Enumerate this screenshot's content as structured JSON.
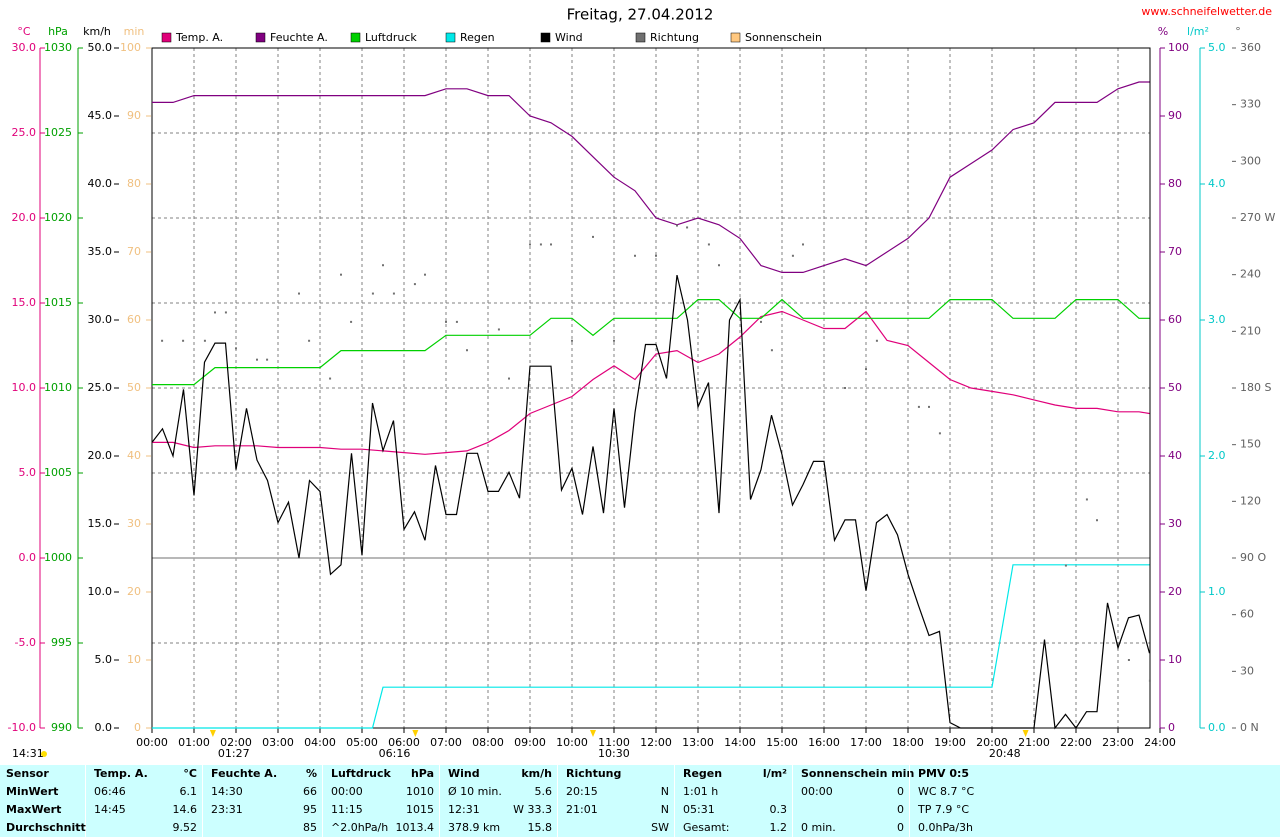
{
  "chart_data": {
    "type": "line",
    "title": "Freitag, 27.04.2012",
    "source": "www.schneifelwetter.de",
    "current_time": "14:31",
    "grid": true,
    "xlim": [
      0,
      24
    ],
    "xticks": [
      {
        "value": 0,
        "label": "00:00"
      },
      {
        "value": 1,
        "label": "01:00"
      },
      {
        "value": 2,
        "label": "02:00"
      },
      {
        "value": 3,
        "label": "03:00"
      },
      {
        "value": 4,
        "label": "04:00"
      },
      {
        "value": 5,
        "label": "05:00"
      },
      {
        "value": 6,
        "label": "06:00"
      },
      {
        "value": 7,
        "label": "07:00"
      },
      {
        "value": 8,
        "label": "08:00"
      },
      {
        "value": 9,
        "label": "09:00"
      },
      {
        "value": 10,
        "label": "10:00"
      },
      {
        "value": 11,
        "label": "11:00"
      },
      {
        "value": 12,
        "label": "12:00"
      },
      {
        "value": 13,
        "label": "13:00"
      },
      {
        "value": 14,
        "label": "14:00"
      },
      {
        "value": 15,
        "label": "15:00"
      },
      {
        "value": 16,
        "label": "16:00"
      },
      {
        "value": 17,
        "label": "17:00"
      },
      {
        "value": 18,
        "label": "18:00"
      },
      {
        "value": 19,
        "label": "19:00"
      },
      {
        "value": 20,
        "label": "20:00"
      },
      {
        "value": 21,
        "label": "21:00"
      },
      {
        "value": 22,
        "label": "22:00"
      },
      {
        "value": 23,
        "label": "23:00"
      },
      {
        "value": 24,
        "label": "24:00"
      }
    ],
    "markers": [
      {
        "time": "01:27",
        "x": 1.45
      },
      {
        "time": "06:16",
        "x": 6.27
      },
      {
        "time": "10:30",
        "x": 10.5
      },
      {
        "time": "20:48",
        "x": 20.8
      }
    ],
    "axes": [
      {
        "unit": "°C",
        "color": "#e0007a",
        "lim": [
          -10,
          30
        ],
        "ticks": [
          {
            "value": -10,
            "label": "-10.0"
          },
          {
            "value": -5,
            "label": "-5.0"
          },
          {
            "value": 0,
            "label": "0.0"
          },
          {
            "value": 5,
            "label": "5.0"
          },
          {
            "value": 10,
            "label": "10.0"
          },
          {
            "value": 15,
            "label": "15.0"
          },
          {
            "value": 20,
            "label": "20.0"
          },
          {
            "value": 25,
            "label": "25.0"
          },
          {
            "value": 30,
            "label": "30.0"
          }
        ]
      },
      {
        "unit": "hPa",
        "color": "#00a000",
        "lim": [
          990,
          1030
        ],
        "ticks": [
          990,
          995,
          1000,
          1005,
          1010,
          1015,
          1020,
          1025,
          1030
        ]
      },
      {
        "unit": "km/h",
        "color": "#000000",
        "lim": [
          0,
          50
        ],
        "ticks": [
          {
            "value": 0,
            "label": "0.0"
          },
          {
            "value": 5,
            "label": "5.0"
          },
          {
            "value": 10,
            "label": "10.0"
          },
          {
            "value": 15,
            "label": "15.0"
          },
          {
            "value": 20,
            "label": "20.0"
          },
          {
            "value": 25,
            "label": "25.0"
          },
          {
            "value": 30,
            "label": "30.0"
          },
          {
            "value": 35,
            "label": "35.0"
          },
          {
            "value": 40,
            "label": "40.0"
          },
          {
            "value": 45,
            "label": "45.0"
          },
          {
            "value": 50,
            "label": "50.0"
          }
        ]
      },
      {
        "unit": "min",
        "color": "#f0c080",
        "lim": [
          0,
          100
        ],
        "ticks": [
          0,
          10,
          20,
          30,
          40,
          50,
          60,
          70,
          80,
          90,
          100
        ]
      },
      {
        "unit": "%",
        "color": "#800080",
        "lim": [
          0,
          100
        ],
        "ticks": [
          0,
          10,
          20,
          30,
          40,
          50,
          60,
          70,
          80,
          90,
          100
        ]
      },
      {
        "unit": "l/m²",
        "color": "#00c8c8",
        "lim": [
          0,
          5
        ],
        "ticks": [
          {
            "value": 0,
            "label": "0.0"
          },
          {
            "value": 1,
            "label": "1.0"
          },
          {
            "value": 2,
            "label": "2.0"
          },
          {
            "value": 3,
            "label": "3.0"
          },
          {
            "value": 4,
            "label": "4.0"
          },
          {
            "value": 5,
            "label": "5.0"
          }
        ]
      },
      {
        "unit": "°",
        "color": "#606060",
        "lim": [
          0,
          360
        ],
        "ticks": [
          {
            "value": 0,
            "label": "0 N"
          },
          30,
          60,
          {
            "value": 90,
            "label": "90 O"
          },
          120,
          150,
          {
            "value": 180,
            "label": "180 S"
          },
          210,
          240,
          {
            "value": 270,
            "label": "270 W"
          },
          300,
          330,
          360
        ]
      }
    ],
    "series": [
      {
        "name": "Temp. A.",
        "color": "#e0007a",
        "axis": 0,
        "type": "line",
        "x": [
          0,
          0.5,
          1,
          1.5,
          2,
          2.5,
          3,
          3.5,
          4,
          4.5,
          5,
          5.5,
          6,
          6.5,
          7,
          7.5,
          8,
          8.5,
          9,
          9.5,
          10,
          10.5,
          11,
          11.5,
          12,
          12.5,
          13,
          13.5,
          14,
          14.5,
          15,
          15.5,
          16,
          16.5,
          17,
          17.5,
          18,
          18.5,
          19,
          19.5,
          20,
          20.5,
          21,
          21.5,
          22,
          22.5,
          23,
          23.5,
          23.75
        ],
        "values": [
          6.8,
          6.8,
          6.5,
          6.6,
          6.6,
          6.6,
          6.5,
          6.5,
          6.5,
          6.4,
          6.4,
          6.3,
          6.2,
          6.1,
          6.2,
          6.3,
          6.8,
          7.5,
          8.5,
          9.0,
          9.5,
          10.5,
          11.3,
          10.5,
          12.0,
          12.2,
          11.5,
          12.0,
          13.0,
          14.2,
          14.5,
          14.0,
          13.5,
          13.5,
          14.5,
          12.8,
          12.5,
          11.5,
          10.5,
          10.0,
          9.8,
          9.6,
          9.3,
          9.0,
          8.8,
          8.8,
          8.6,
          8.6,
          8.5
        ]
      },
      {
        "name": "Feuchte A.",
        "color": "#800080",
        "axis": 4,
        "type": "line",
        "x": [
          0,
          0.5,
          1,
          1.5,
          2,
          2.5,
          3,
          3.5,
          4,
          4.5,
          5,
          5.5,
          6,
          6.5,
          7,
          7.5,
          8,
          8.5,
          9,
          9.5,
          10,
          10.5,
          11,
          11.5,
          12,
          12.5,
          13,
          13.5,
          14,
          14.5,
          15,
          15.5,
          16,
          16.5,
          17,
          17.5,
          18,
          18.5,
          19,
          19.5,
          20,
          20.5,
          21,
          21.5,
          22,
          22.5,
          23,
          23.5,
          23.75
        ],
        "values": [
          92,
          92,
          93,
          93,
          93,
          93,
          93,
          93,
          93,
          93,
          93,
          93,
          93,
          93,
          94,
          94,
          93,
          93,
          90,
          89,
          87,
          84,
          81,
          79,
          75,
          74,
          75,
          74,
          72,
          68,
          67,
          67,
          68,
          69,
          68,
          70,
          72,
          75,
          81,
          83,
          85,
          88,
          89,
          92,
          92,
          92,
          94,
          95,
          95
        ]
      },
      {
        "name": "Luftdruck",
        "color": "#00d000",
        "axis": 1,
        "type": "line",
        "x": [
          0,
          0.5,
          1,
          1.5,
          2,
          2.5,
          3,
          3.5,
          4,
          4.5,
          5,
          5.5,
          6,
          6.5,
          7,
          7.5,
          8,
          8.5,
          9,
          9.5,
          10,
          10.5,
          11,
          11.5,
          12,
          12.5,
          13,
          13.5,
          14,
          14.5,
          15,
          15.5,
          16,
          16.5,
          17,
          17.5,
          18,
          18.5,
          19,
          19.5,
          20,
          20.5,
          21,
          21.5,
          22,
          22.5,
          23,
          23.5,
          23.75
        ],
        "values": [
          1010.2,
          1010.2,
          1010.2,
          1011.2,
          1011.2,
          1011.2,
          1011.2,
          1011.2,
          1011.2,
          1012.2,
          1012.2,
          1012.2,
          1012.2,
          1012.2,
          1013.1,
          1013.1,
          1013.1,
          1013.1,
          1013.1,
          1014.1,
          1014.1,
          1013.1,
          1014.1,
          1014.1,
          1014.1,
          1014.1,
          1015.2,
          1015.2,
          1014.1,
          1014.1,
          1015.2,
          1014.1,
          1014.1,
          1014.1,
          1014.1,
          1014.1,
          1014.1,
          1014.1,
          1015.2,
          1015.2,
          1015.2,
          1014.1,
          1014.1,
          1014.1,
          1015.2,
          1015.2,
          1015.2,
          1014.1,
          1014.1
        ]
      },
      {
        "name": "Regen",
        "color": "#00e8e8",
        "axis": 5,
        "type": "line",
        "x": [
          0,
          5.25,
          5.5,
          20,
          20.5,
          23.75
        ],
        "values": [
          0,
          0,
          0.3,
          0.3,
          1.2,
          1.2
        ]
      },
      {
        "name": "Wind",
        "color": "#000000",
        "axis": 2,
        "type": "line",
        "x": [
          0,
          0.25,
          0.5,
          0.75,
          1,
          1.25,
          1.5,
          1.75,
          2,
          2.25,
          2.5,
          2.75,
          3,
          3.25,
          3.5,
          3.75,
          4,
          4.25,
          4.5,
          4.75,
          5,
          5.25,
          5.5,
          5.75,
          6,
          6.25,
          6.5,
          6.75,
          7,
          7.25,
          7.5,
          7.75,
          8,
          8.25,
          8.5,
          8.75,
          9,
          9.25,
          9.5,
          9.75,
          10,
          10.25,
          10.5,
          10.75,
          11,
          11.25,
          11.5,
          11.75,
          12,
          12.25,
          12.5,
          12.75,
          13,
          13.25,
          13.5,
          13.75,
          14,
          14.25,
          14.5,
          14.75,
          15,
          15.25,
          15.5,
          15.75,
          16,
          16.25,
          16.5,
          16.75,
          17,
          17.25,
          17.5,
          17.75,
          18,
          18.25,
          18.5,
          18.75,
          19,
          19.25,
          19.5,
          19.75,
          20,
          20.25,
          20.5,
          20.75,
          21,
          21.25,
          21.5,
          21.75,
          22,
          22.25,
          22.5,
          22.75,
          23,
          23.25,
          23.5,
          23.75
        ],
        "values": [
          21.0,
          22.0,
          20.0,
          24.9,
          17.1,
          26.9,
          28.3,
          28.3,
          19.0,
          23.5,
          19.7,
          18.2,
          15.1,
          16.6,
          12.5,
          18.2,
          17.4,
          11.3,
          12.0,
          20.2,
          12.7,
          23.9,
          20.4,
          22.6,
          14.6,
          15.9,
          13.8,
          19.3,
          15.7,
          15.7,
          20.2,
          20.2,
          17.4,
          17.4,
          18.8,
          16.9,
          26.6,
          26.6,
          26.6,
          17.5,
          19.1,
          15.7,
          20.7,
          15.8,
          23.5,
          16.2,
          23.2,
          28.2,
          28.2,
          25.7,
          33.3,
          30.0,
          23.6,
          25.4,
          15.8,
          30.0,
          31.5,
          16.8,
          19.0,
          23.0,
          20.1,
          16.4,
          17.9,
          19.6,
          19.6,
          13.8,
          15.3,
          15.3,
          10.1,
          15.1,
          15.7,
          14.2,
          11.3,
          9.0,
          6.8,
          7.1,
          0.4,
          0,
          0,
          0,
          0,
          0,
          0,
          0,
          0,
          6.5,
          0,
          1.0,
          0,
          1.2,
          1.2,
          9.2,
          5.9,
          8.1,
          8.3,
          5.5
        ]
      },
      {
        "name": "Richtung",
        "color": "#707070",
        "axis": 6,
        "type": "scatter",
        "x": [
          0.24,
          0.74,
          1.26,
          1.5,
          1.76,
          2.0,
          2.5,
          2.74,
          3.5,
          3.74,
          4.24,
          4.5,
          4.74,
          5.26,
          5.5,
          5.76,
          6.26,
          6.5,
          7.0,
          7.26,
          7.5,
          8.26,
          8.5,
          9.0,
          9.26,
          9.5,
          10.0,
          10.5,
          11.0,
          11.5,
          12.0,
          12.5,
          12.74,
          13.26,
          13.5,
          14.5,
          14.76,
          15.26,
          15.5,
          16.5,
          17.0,
          17.26,
          18.26,
          18.5,
          18.76,
          21.76,
          22.26,
          22.5,
          23.26,
          23.76
        ],
        "values": [
          205,
          205,
          205,
          220,
          220,
          201,
          195,
          195,
          230,
          205,
          185,
          240,
          215,
          230,
          245,
          230,
          235,
          240,
          215,
          215,
          200,
          211,
          185,
          256,
          256,
          256,
          205,
          260,
          205,
          250,
          250,
          266,
          265,
          256,
          245,
          215,
          200,
          250,
          256,
          180,
          190,
          205,
          170,
          170,
          156,
          86,
          121,
          110,
          36,
          25
        ]
      },
      {
        "name": "Sonnenschein",
        "color": "#ffc880",
        "axis": 3,
        "type": "line",
        "x": [],
        "values": []
      }
    ]
  },
  "table": {
    "columns": [
      {
        "l": "Sensor"
      },
      {
        "l": "Temp. A.",
        "r": "°C"
      },
      {
        "l": "Feuchte A.",
        "r": "%"
      },
      {
        "l": "Luftdruck",
        "r": "hPa"
      },
      {
        "l": "Wind",
        "r": "km/h"
      },
      {
        "l": "Richtung"
      },
      {
        "l": "Regen",
        "r": "l/m²"
      },
      {
        "l": "Sonnenschein min"
      },
      {
        "l": "PMV 0:5"
      }
    ],
    "rows": [
      [
        {
          "l": "MinWert"
        },
        {
          "l": "06:46",
          "r": "6.1"
        },
        {
          "l": "14:30",
          "r": "66"
        },
        {
          "l": "00:00",
          "r": "1010"
        },
        {
          "l": "Ø 10 min.",
          "r": "5.6"
        },
        {
          "l": "20:15",
          "r": "N"
        },
        {
          "l": "1:01 h"
        },
        {
          "l": "00:00",
          "r": "0"
        },
        {
          "l": "WC 8.7 °C"
        }
      ],
      [
        {
          "l": "MaxWert"
        },
        {
          "l": "14:45",
          "r": "14.6"
        },
        {
          "l": "23:31",
          "r": "95"
        },
        {
          "l": "11:15",
          "r": "1015"
        },
        {
          "l": "12:31",
          "r": "W 33.3"
        },
        {
          "l": "21:01",
          "r": "N"
        },
        {
          "l": "05:31",
          "r": "0.3"
        },
        {
          "r": "0"
        },
        {
          "l": "TP 7.9 °C"
        }
      ],
      [
        {
          "l": "Durchschnitt"
        },
        {
          "r": "9.52"
        },
        {
          "r": "85"
        },
        {
          "l": "^2.0hPa/h",
          "r": "1013.4"
        },
        {
          "l": "378.9 km",
          "r": "15.8"
        },
        {
          "r": "SW"
        },
        {
          "l": "Gesamt:",
          "r": "1.2"
        },
        {
          "l": "0 min.",
          "r": "0"
        },
        {
          "l": "0.0hPa/3h"
        }
      ]
    ]
  }
}
